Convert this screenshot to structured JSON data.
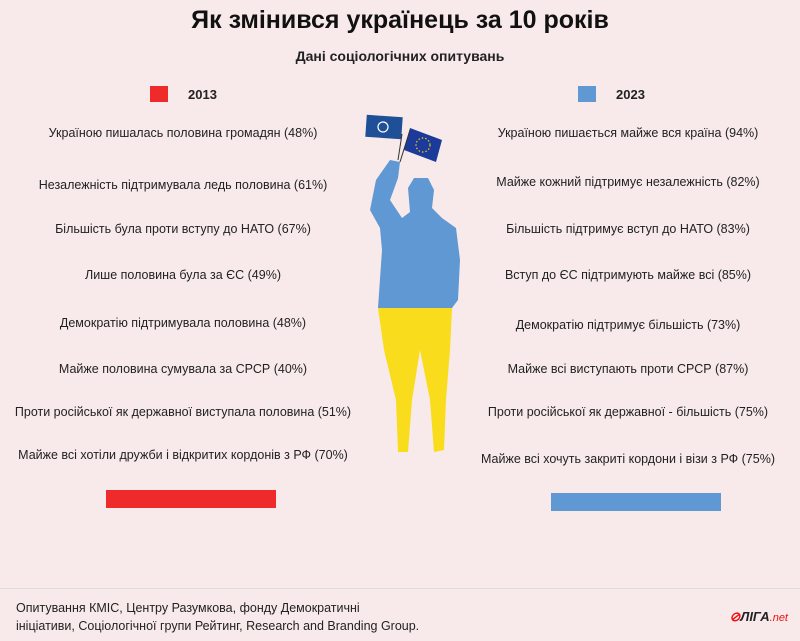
{
  "header": {
    "title": "Як змінився українець за 10 років",
    "subtitle": "Дані соціологічних опитувань"
  },
  "legend": [
    {
      "label": "2013",
      "color": "#ee2a2a"
    },
    {
      "label": "2023",
      "color": "#5f98d2"
    }
  ],
  "left_items": [
    "Україною пишалась половина громадян (48%)",
    "Незалежність підтримувала ледь половина (61%)",
    "Більшість була проти вступу до НАТО (67%)",
    "Лише половина була за ЄС (49%)",
    "Демократію підтримувала половина (48%)",
    "Майже половина сумувала за СРСР (40%)",
    "Проти російської як державної виступала половина (51%)",
    "Майже всі хотіли дружби і відкритих кордонів з РФ (70%)"
  ],
  "right_items": [
    "Україною пишається майже вся країна (94%)",
    "Майже кожний підтримує незалежність (82%)",
    "Більшість підтримує вступ до НАТО (83%)",
    "Вступ до ЄС підтримують майже всі (85%)",
    "Демократію підтримує більшість (73%)",
    "Майже всі виступають проти СРСР (87%)",
    "Проти російської як державної - більшість (75%)",
    "Майже всі хочуть закриті кордони і візи з РФ (75%)"
  ],
  "figure": {
    "icons": [
      "nato-flag-icon",
      "eu-flag-icon",
      "person-silhouette"
    ],
    "upper_color": "#5f98d2",
    "lower_color": "#f9dc1c"
  },
  "footer": {
    "source_line1": "Опитування КМІС, Центру Разумкова, фонду Демократичні",
    "source_line2": "ініціативи, Соціологічної групи Рейтинг, Research and Branding Group.",
    "logo": "ЛІГА",
    "logo_suffix": ".net"
  }
}
